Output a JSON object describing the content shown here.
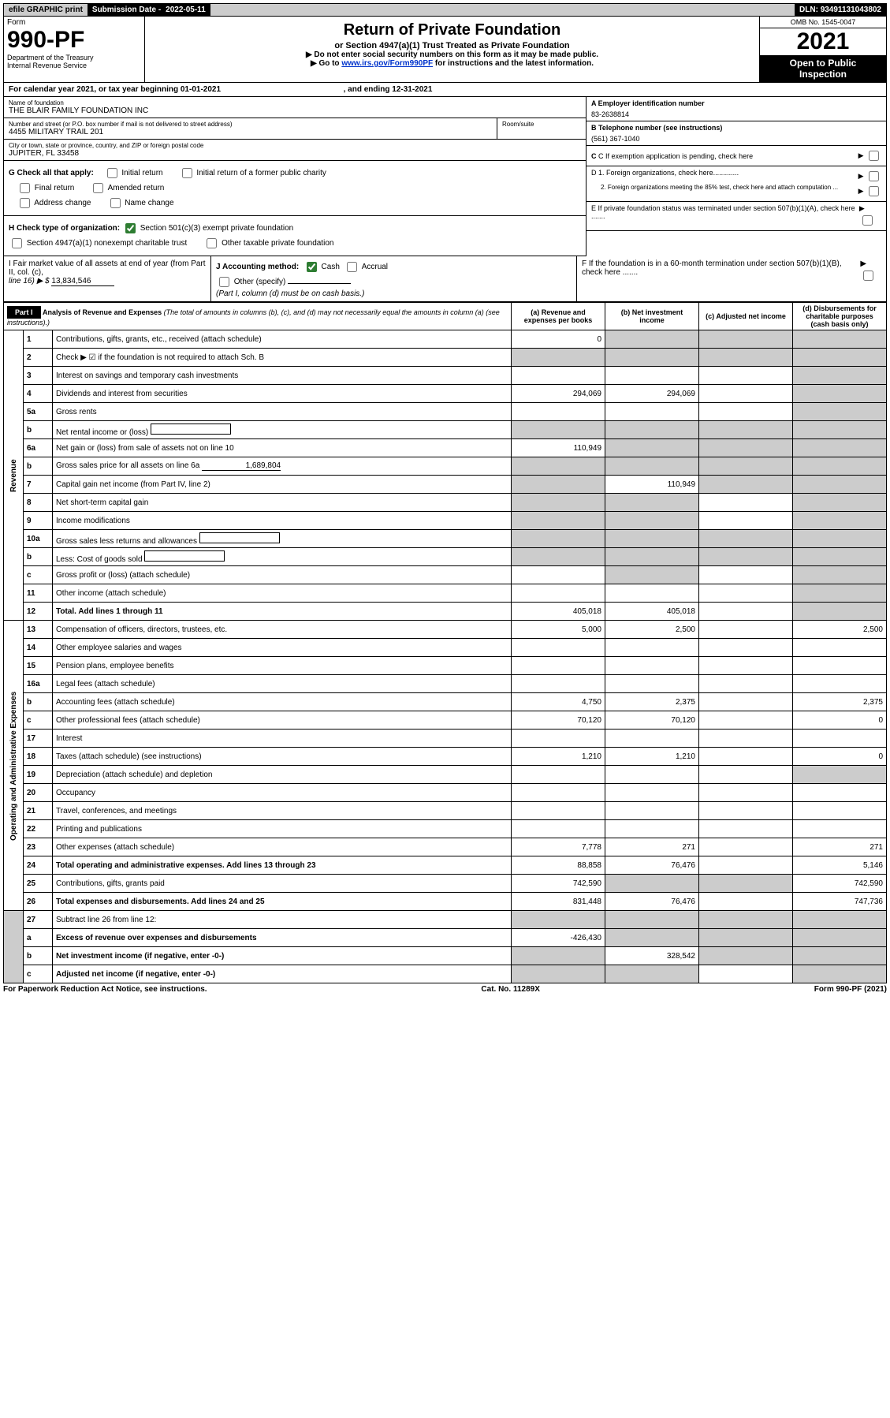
{
  "topbar": {
    "efile": "efile GRAPHIC print",
    "submission_label": "Submission Date - ",
    "submission_date": "2022-05-11",
    "dln_label": "DLN: ",
    "dln": "93491131043802"
  },
  "header": {
    "form_label": "Form",
    "form_no": "990-PF",
    "dept1": "Department of the Treasury",
    "dept2": "Internal Revenue Service",
    "title": "Return of Private Foundation",
    "subtitle": "or Section 4947(a)(1) Trust Treated as Private Foundation",
    "instr1": "▶ Do not enter social security numbers on this form as it may be made public.",
    "instr2_a": "▶ Go to ",
    "instr2_link": "www.irs.gov/Form990PF",
    "instr2_b": " for instructions and the latest information.",
    "omb": "OMB No. 1545-0047",
    "year": "2021",
    "open1": "Open to Public",
    "open2": "Inspection"
  },
  "calendar": {
    "prefix": "For calendar year 2021, or tax year beginning ",
    "begin": "01-01-2021",
    "mid": " , and ending ",
    "end": "12-31-2021"
  },
  "info": {
    "name_label": "Name of foundation",
    "name": "THE BLAIR FAMILY FOUNDATION INC",
    "street_label": "Number and street (or P.O. box number if mail is not delivered to street address)",
    "street": "4455 MILITARY TRAIL 201",
    "room_label": "Room/suite",
    "city_label": "City or town, state or province, country, and ZIP or foreign postal code",
    "city": "JUPITER, FL  33458",
    "a_label": "A Employer identification number",
    "a_val": "83-2638814",
    "b_label": "B Telephone number (see instructions)",
    "b_val": "(561) 367-1040",
    "c_label": "C If exemption application is pending, check here",
    "d1": "D 1. Foreign organizations, check here.............",
    "d2": "2. Foreign organizations meeting the 85% test, check here and attach computation ...",
    "e_label": "E  If private foundation status was terminated under section 507(b)(1)(A), check here .......",
    "f_label": "F  If the foundation is in a 60-month termination under section 507(b)(1)(B), check here .......",
    "g_label": "G Check all that apply:",
    "g_opts": [
      "Initial return",
      "Initial return of a former public charity",
      "Final return",
      "Amended return",
      "Address change",
      "Name change"
    ],
    "h_label": "H Check type of organization:",
    "h_opt1": "Section 501(c)(3) exempt private foundation",
    "h_opt2": "Section 4947(a)(1) nonexempt charitable trust",
    "h_opt3": "Other taxable private foundation",
    "i_label": "I Fair market value of all assets at end of year (from Part II, col. (c),",
    "i_line": "line 16) ▶ $",
    "i_val": "13,834,546",
    "j_label": "J Accounting method:",
    "j_cash": "Cash",
    "j_accrual": "Accrual",
    "j_other": "Other (specify)",
    "j_note": "(Part I, column (d) must be on cash basis.)"
  },
  "part1": {
    "label": "Part I",
    "title": "Analysis of Revenue and Expenses",
    "title_note": " (The total of amounts in columns (b), (c), and (d) may not necessarily equal the amounts in column (a) (see instructions).)",
    "col_a": "(a) Revenue and expenses per books",
    "col_b": "(b) Net investment income",
    "col_c": "(c) Adjusted net income",
    "col_d": "(d) Disbursements for charitable purposes (cash basis only)"
  },
  "sections": {
    "revenue": "Revenue",
    "expenses": "Operating and Administrative Expenses"
  },
  "rows": [
    {
      "sec": "rev",
      "no": "1",
      "desc": "Contributions, gifts, grants, etc., received (attach schedule)",
      "a": "0",
      "b_shade": true,
      "c_shade": true,
      "d_shade": true
    },
    {
      "sec": "rev",
      "no": "2",
      "desc": "Check ▶ ☑ if the foundation is not required to attach Sch. B",
      "all_shade": true,
      "checkmark": true
    },
    {
      "sec": "rev",
      "no": "3",
      "desc": "Interest on savings and temporary cash investments",
      "a": "",
      "b": "",
      "c": "",
      "d_shade": true
    },
    {
      "sec": "rev",
      "no": "4",
      "desc": "Dividends and interest from securities",
      "a": "294,069",
      "b": "294,069",
      "c": "",
      "d_shade": true
    },
    {
      "sec": "rev",
      "no": "5a",
      "desc": "Gross rents",
      "a": "",
      "b": "",
      "c": "",
      "d_shade": true
    },
    {
      "sec": "rev",
      "no": "b",
      "desc": "Net rental income or (loss)",
      "inline_box": true,
      "all_shade": true
    },
    {
      "sec": "rev",
      "no": "6a",
      "desc": "Net gain or (loss) from sale of assets not on line 10",
      "a": "110,949",
      "b_shade": true,
      "c_shade": true,
      "d_shade": true
    },
    {
      "sec": "rev",
      "no": "b",
      "desc": "Gross sales price for all assets on line 6a",
      "inline_val": "1,689,804",
      "all_shade": true
    },
    {
      "sec": "rev",
      "no": "7",
      "desc": "Capital gain net income (from Part IV, line 2)",
      "a_shade": true,
      "b": "110,949",
      "c_shade": true,
      "d_shade": true
    },
    {
      "sec": "rev",
      "no": "8",
      "desc": "Net short-term capital gain",
      "a_shade": true,
      "b_shade": true,
      "c": "",
      "d_shade": true
    },
    {
      "sec": "rev",
      "no": "9",
      "desc": "Income modifications",
      "a_shade": true,
      "b_shade": true,
      "c": "",
      "d_shade": true
    },
    {
      "sec": "rev",
      "no": "10a",
      "desc": "Gross sales less returns and allowances",
      "inline_box": true,
      "all_shade": true
    },
    {
      "sec": "rev",
      "no": "b",
      "desc": "Less: Cost of goods sold",
      "inline_box": true,
      "all_shade": true
    },
    {
      "sec": "rev",
      "no": "c",
      "desc": "Gross profit or (loss) (attach schedule)",
      "a": "",
      "b_shade": true,
      "c": "",
      "d_shade": true
    },
    {
      "sec": "rev",
      "no": "11",
      "desc": "Other income (attach schedule)",
      "a": "",
      "b": "",
      "c": "",
      "d_shade": true
    },
    {
      "sec": "rev",
      "no": "12",
      "desc": "Total. Add lines 1 through 11",
      "bold": true,
      "a": "405,018",
      "b": "405,018",
      "c": "",
      "d_shade": true
    },
    {
      "sec": "exp",
      "no": "13",
      "desc": "Compensation of officers, directors, trustees, etc.",
      "a": "5,000",
      "b": "2,500",
      "c": "",
      "d": "2,500"
    },
    {
      "sec": "exp",
      "no": "14",
      "desc": "Other employee salaries and wages",
      "a": "",
      "b": "",
      "c": "",
      "d": ""
    },
    {
      "sec": "exp",
      "no": "15",
      "desc": "Pension plans, employee benefits",
      "a": "",
      "b": "",
      "c": "",
      "d": ""
    },
    {
      "sec": "exp",
      "no": "16a",
      "desc": "Legal fees (attach schedule)",
      "a": "",
      "b": "",
      "c": "",
      "d": ""
    },
    {
      "sec": "exp",
      "no": "b",
      "desc": "Accounting fees (attach schedule)",
      "a": "4,750",
      "b": "2,375",
      "c": "",
      "d": "2,375"
    },
    {
      "sec": "exp",
      "no": "c",
      "desc": "Other professional fees (attach schedule)",
      "a": "70,120",
      "b": "70,120",
      "c": "",
      "d": "0"
    },
    {
      "sec": "exp",
      "no": "17",
      "desc": "Interest",
      "a": "",
      "b": "",
      "c": "",
      "d": ""
    },
    {
      "sec": "exp",
      "no": "18",
      "desc": "Taxes (attach schedule) (see instructions)",
      "a": "1,210",
      "b": "1,210",
      "c": "",
      "d": "0"
    },
    {
      "sec": "exp",
      "no": "19",
      "desc": "Depreciation (attach schedule) and depletion",
      "a": "",
      "b": "",
      "c": "",
      "d_shade": true
    },
    {
      "sec": "exp",
      "no": "20",
      "desc": "Occupancy",
      "a": "",
      "b": "",
      "c": "",
      "d": ""
    },
    {
      "sec": "exp",
      "no": "21",
      "desc": "Travel, conferences, and meetings",
      "a": "",
      "b": "",
      "c": "",
      "d": ""
    },
    {
      "sec": "exp",
      "no": "22",
      "desc": "Printing and publications",
      "a": "",
      "b": "",
      "c": "",
      "d": ""
    },
    {
      "sec": "exp",
      "no": "23",
      "desc": "Other expenses (attach schedule)",
      "a": "7,778",
      "b": "271",
      "c": "",
      "d": "271"
    },
    {
      "sec": "exp",
      "no": "24",
      "desc": "Total operating and administrative expenses. Add lines 13 through 23",
      "bold": true,
      "a": "88,858",
      "b": "76,476",
      "c": "",
      "d": "5,146"
    },
    {
      "sec": "exp",
      "no": "25",
      "desc": "Contributions, gifts, grants paid",
      "a": "742,590",
      "b_shade": true,
      "c_shade": true,
      "d": "742,590"
    },
    {
      "sec": "exp",
      "no": "26",
      "desc": "Total expenses and disbursements. Add lines 24 and 25",
      "bold": true,
      "a": "831,448",
      "b": "76,476",
      "c": "",
      "d": "747,736"
    },
    {
      "sec": "sum",
      "no": "27",
      "desc": "Subtract line 26 from line 12:",
      "a_shade": true,
      "b_shade": true,
      "c_shade": true,
      "d_shade": true
    },
    {
      "sec": "sum",
      "no": "a",
      "desc": "Excess of revenue over expenses and disbursements",
      "bold": true,
      "a": "-426,430",
      "b_shade": true,
      "c_shade": true,
      "d_shade": true
    },
    {
      "sec": "sum",
      "no": "b",
      "desc": "Net investment income (if negative, enter -0-)",
      "bold": true,
      "a_shade": true,
      "b": "328,542",
      "c_shade": true,
      "d_shade": true
    },
    {
      "sec": "sum",
      "no": "c",
      "desc": "Adjusted net income (if negative, enter -0-)",
      "bold": true,
      "a_shade": true,
      "b_shade": true,
      "c": "",
      "d_shade": true
    }
  ],
  "footer": {
    "left": "For Paperwork Reduction Act Notice, see instructions.",
    "mid": "Cat. No. 11289X",
    "right": "Form 990-PF (2021)"
  }
}
